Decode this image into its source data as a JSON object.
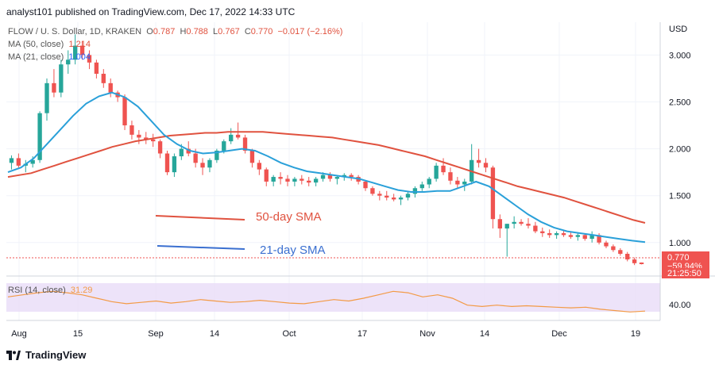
{
  "header": {
    "published": "analyst101 published on TradingView.com, Dec 17, 2022 14:33 UTC"
  },
  "legend": {
    "symbol": "FLOW / U. S. Dollar, 1D, KRAKEN",
    "o_label": "O",
    "o": "0.787",
    "h_label": "H",
    "h": "0.788",
    "l_label": "L",
    "l": "0.767",
    "c_label": "C",
    "c": "0.770",
    "change": "−0.017 (−2.16%)",
    "ma50_label": "MA (50, close)",
    "ma50_value": "1.214",
    "ma21_label": "MA (21, close)",
    "ma21_value": "1.004",
    "rsi_label": "RSI (14, close)",
    "rsi_value": "31.29"
  },
  "price_axis": {
    "currency": "USD",
    "ticks": [
      "3.000",
      "2.500",
      "2.000",
      "1.500",
      "1.000"
    ],
    "last_price": "0.770",
    "last_change": "−59.94%",
    "countdown": "21:25:50"
  },
  "rsi_axis": {
    "ticks": [
      "40.00"
    ]
  },
  "time_axis": {
    "labels": [
      "Aug",
      "15",
      "Sep",
      "14",
      "Oct",
      "17",
      "Nov",
      "14",
      "Dec",
      "19"
    ]
  },
  "annotations": {
    "sma50_text": "50-day SMA",
    "sma21_text": "21-day SMA"
  },
  "branding": {
    "footer": "TradingView"
  },
  "colors": {
    "up": "#26a69a",
    "down": "#ef5350",
    "ma50": "#e0523f",
    "ma21": "#2aa0d9",
    "rsi_line": "#f39a45",
    "rsi_band": "#e8dcf7",
    "annotation_red": "#e0523f",
    "annotation_blue": "#3a6fd0"
  },
  "chart_data": {
    "type": "candlestick",
    "title": "FLOW / U. S. Dollar, 1D, KRAKEN",
    "y_unit": "USD",
    "ylim": [
      0.66,
      3.35
    ],
    "x_labels": [
      "Aug",
      "15",
      "Sep",
      "14",
      "Oct",
      "17",
      "Nov",
      "14",
      "Dec",
      "19"
    ],
    "grid": true,
    "candles_ohlc": [
      [
        1.85,
        1.93,
        1.78,
        1.9
      ],
      [
        1.9,
        1.95,
        1.8,
        1.82
      ],
      [
        1.82,
        1.88,
        1.75,
        1.84
      ],
      [
        1.84,
        1.92,
        1.8,
        1.88
      ],
      [
        1.88,
        2.4,
        1.85,
        2.38
      ],
      [
        2.38,
        2.75,
        2.3,
        2.7
      ],
      [
        2.7,
        2.85,
        2.55,
        2.6
      ],
      [
        2.6,
        2.95,
        2.55,
        2.9
      ],
      [
        2.9,
        3.05,
        2.8,
        2.95
      ],
      [
        2.95,
        3.22,
        2.9,
        3.1
      ],
      [
        3.1,
        3.15,
        2.95,
        3.0
      ],
      [
        3.0,
        3.05,
        2.85,
        2.92
      ],
      [
        2.92,
        2.95,
        2.75,
        2.8
      ],
      [
        2.8,
        2.85,
        2.65,
        2.7
      ],
      [
        2.7,
        2.75,
        2.55,
        2.6
      ],
      [
        2.6,
        2.62,
        2.5,
        2.55
      ],
      [
        2.55,
        2.58,
        2.2,
        2.25
      ],
      [
        2.25,
        2.3,
        2.1,
        2.15
      ],
      [
        2.15,
        2.2,
        2.05,
        2.12
      ],
      [
        2.12,
        2.18,
        2.05,
        2.1
      ],
      [
        2.1,
        2.16,
        2.02,
        2.08
      ],
      [
        2.08,
        2.1,
        1.9,
        1.95
      ],
      [
        1.95,
        1.98,
        1.72,
        1.75
      ],
      [
        1.75,
        1.95,
        1.7,
        1.92
      ],
      [
        1.92,
        2.05,
        1.88,
        2.0
      ],
      [
        2.0,
        2.08,
        1.92,
        1.95
      ],
      [
        1.95,
        2.0,
        1.8,
        1.85
      ],
      [
        1.85,
        1.9,
        1.72,
        1.8
      ],
      [
        1.8,
        1.9,
        1.75,
        1.88
      ],
      [
        1.88,
        2.0,
        1.85,
        1.98
      ],
      [
        1.98,
        2.1,
        1.95,
        2.08
      ],
      [
        2.08,
        2.22,
        2.05,
        2.15
      ],
      [
        2.15,
        2.28,
        2.1,
        2.12
      ],
      [
        2.12,
        2.15,
        1.95,
        1.98
      ],
      [
        1.98,
        2.0,
        1.8,
        1.85
      ],
      [
        1.85,
        1.88,
        1.72,
        1.78
      ],
      [
        1.78,
        1.8,
        1.6,
        1.65
      ],
      [
        1.65,
        1.72,
        1.6,
        1.7
      ],
      [
        1.7,
        1.75,
        1.62,
        1.68
      ],
      [
        1.68,
        1.72,
        1.6,
        1.65
      ],
      [
        1.65,
        1.7,
        1.6,
        1.68
      ],
      [
        1.68,
        1.72,
        1.62,
        1.66
      ],
      [
        1.66,
        1.7,
        1.6,
        1.64
      ],
      [
        1.64,
        1.7,
        1.6,
        1.68
      ],
      [
        1.68,
        1.75,
        1.65,
        1.72
      ],
      [
        1.72,
        1.75,
        1.65,
        1.68
      ],
      [
        1.68,
        1.72,
        1.62,
        1.7
      ],
      [
        1.7,
        1.74,
        1.66,
        1.72
      ],
      [
        1.72,
        1.74,
        1.66,
        1.7
      ],
      [
        1.7,
        1.72,
        1.62,
        1.65
      ],
      [
        1.65,
        1.66,
        1.55,
        1.58
      ],
      [
        1.58,
        1.6,
        1.5,
        1.52
      ],
      [
        1.52,
        1.55,
        1.45,
        1.5
      ],
      [
        1.5,
        1.55,
        1.45,
        1.48
      ],
      [
        1.48,
        1.52,
        1.44,
        1.46
      ],
      [
        1.46,
        1.5,
        1.4,
        1.48
      ],
      [
        1.48,
        1.55,
        1.45,
        1.52
      ],
      [
        1.52,
        1.6,
        1.48,
        1.58
      ],
      [
        1.58,
        1.65,
        1.55,
        1.62
      ],
      [
        1.62,
        1.7,
        1.58,
        1.68
      ],
      [
        1.68,
        1.85,
        1.65,
        1.82
      ],
      [
        1.82,
        1.9,
        1.72,
        1.75
      ],
      [
        1.75,
        1.8,
        1.62,
        1.66
      ],
      [
        1.66,
        1.7,
        1.58,
        1.62
      ],
      [
        1.62,
        1.68,
        1.55,
        1.65
      ],
      [
        1.65,
        2.05,
        1.62,
        1.88
      ],
      [
        1.88,
        2.0,
        1.8,
        1.85
      ],
      [
        1.85,
        1.9,
        1.75,
        1.8
      ],
      [
        1.8,
        1.82,
        1.15,
        1.25
      ],
      [
        1.25,
        1.3,
        1.05,
        1.15
      ],
      [
        1.15,
        1.2,
        0.85,
        1.2
      ],
      [
        1.2,
        1.28,
        1.15,
        1.22
      ],
      [
        1.22,
        1.25,
        1.18,
        1.2
      ],
      [
        1.2,
        1.26,
        1.15,
        1.18
      ],
      [
        1.18,
        1.22,
        1.1,
        1.12
      ],
      [
        1.12,
        1.16,
        1.06,
        1.1
      ],
      [
        1.1,
        1.14,
        1.05,
        1.08
      ],
      [
        1.08,
        1.12,
        1.04,
        1.1
      ],
      [
        1.1,
        1.13,
        1.06,
        1.08
      ],
      [
        1.08,
        1.11,
        1.04,
        1.06
      ],
      [
        1.06,
        1.1,
        1.02,
        1.08
      ],
      [
        1.08,
        1.1,
        1.02,
        1.04
      ],
      [
        1.04,
        1.12,
        1.0,
        1.08
      ],
      [
        1.08,
        1.1,
        0.98,
        1.0
      ],
      [
        1.0,
        1.02,
        0.94,
        0.96
      ],
      [
        0.96,
        0.98,
        0.9,
        0.92
      ],
      [
        0.92,
        0.94,
        0.86,
        0.88
      ],
      [
        0.88,
        0.9,
        0.8,
        0.82
      ],
      [
        0.82,
        0.84,
        0.76,
        0.78
      ],
      [
        0.787,
        0.788,
        0.767,
        0.77
      ]
    ],
    "series": [
      {
        "name": "MA (50, close)",
        "values": [
          1.7,
          1.72,
          1.74,
          1.78,
          1.82,
          1.86,
          1.9,
          1.94,
          1.98,
          2.02,
          2.05,
          2.08,
          2.1,
          2.12,
          2.14,
          2.15,
          2.16,
          2.17,
          2.17,
          2.18,
          2.18,
          2.18,
          2.18,
          2.17,
          2.16,
          2.15,
          2.14,
          2.13,
          2.12,
          2.1,
          2.08,
          2.06,
          2.04,
          2.01,
          1.98,
          1.95,
          1.92,
          1.88,
          1.84,
          1.8,
          1.76,
          1.72,
          1.68,
          1.64,
          1.6,
          1.57,
          1.54,
          1.51,
          1.48,
          1.44,
          1.4,
          1.36,
          1.32,
          1.28,
          1.24,
          1.21
        ]
      },
      {
        "name": "MA (21, close)",
        "values": [
          1.75,
          1.8,
          1.9,
          2.05,
          2.2,
          2.35,
          2.48,
          2.56,
          2.6,
          2.55,
          2.45,
          2.3,
          2.15,
          2.05,
          1.98,
          1.95,
          1.96,
          1.98,
          2.0,
          1.98,
          1.92,
          1.85,
          1.8,
          1.76,
          1.74,
          1.72,
          1.7,
          1.68,
          1.64,
          1.6,
          1.56,
          1.54,
          1.54,
          1.55,
          1.55,
          1.6,
          1.65,
          1.6,
          1.5,
          1.4,
          1.3,
          1.22,
          1.16,
          1.12,
          1.1,
          1.08,
          1.06,
          1.04,
          1.02,
          1.004
        ]
      },
      {
        "name": "RSI (14, close)",
        "values": [
          52,
          55,
          58,
          60,
          58,
          55,
          50,
          45,
          42,
          44,
          46,
          43,
          45,
          48,
          46,
          44,
          45,
          47,
          45,
          43,
          42,
          45,
          48,
          46,
          50,
          55,
          60,
          58,
          52,
          55,
          50,
          40,
          38,
          40,
          38,
          39,
          38,
          37,
          36,
          37,
          34,
          32,
          30,
          31.29
        ]
      }
    ],
    "rsi_range": [
      20,
      80
    ],
    "rsi_band": [
      30,
      70
    ]
  }
}
